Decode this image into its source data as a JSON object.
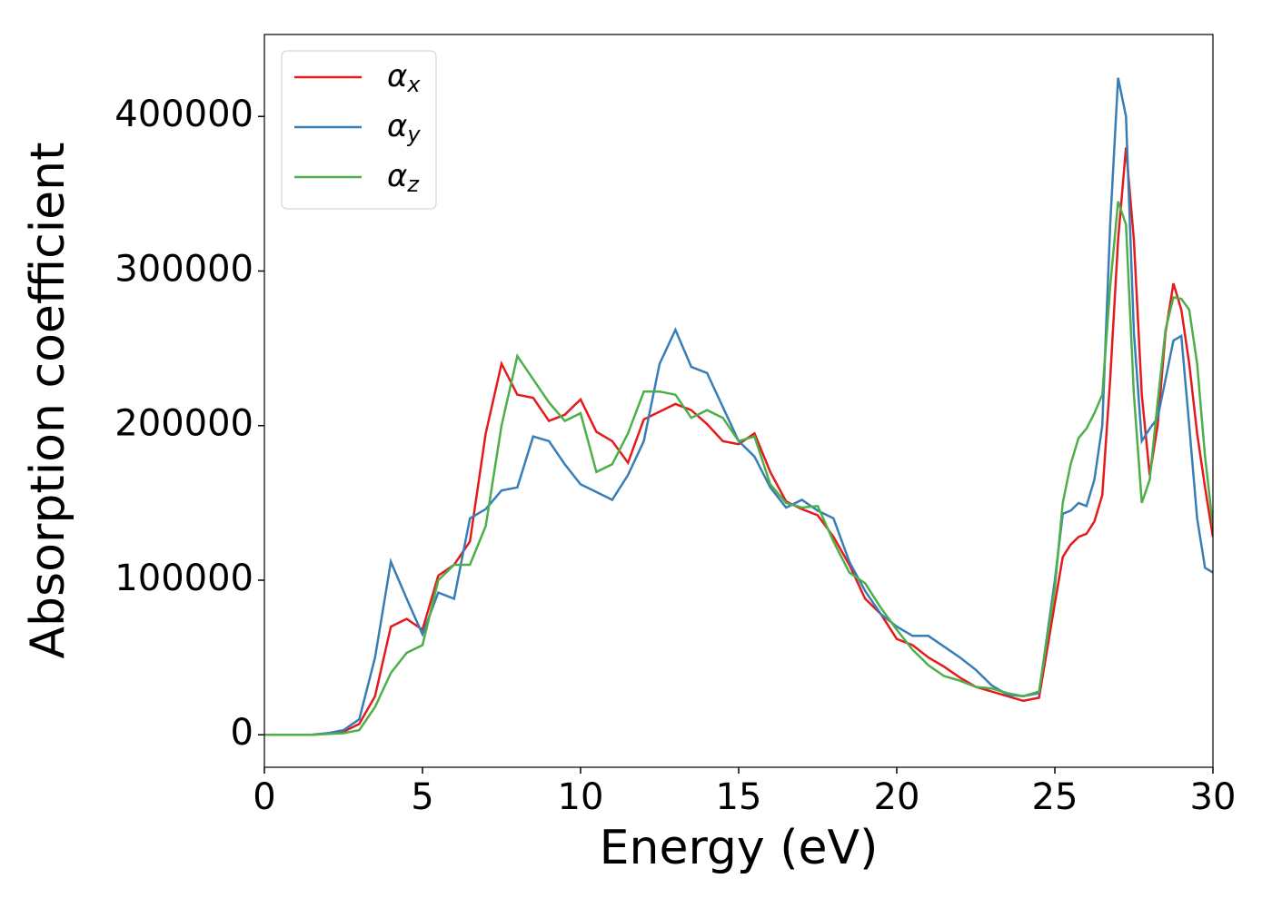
{
  "chart_data": {
    "type": "line",
    "xlabel": "Energy (eV)",
    "ylabel": "Absorption coefficient",
    "x": [
      0,
      0.5,
      1,
      1.5,
      2,
      2.5,
      3,
      3.5,
      4,
      4.5,
      5,
      5.5,
      6,
      6.5,
      7,
      7.5,
      8,
      8.5,
      9,
      9.5,
      10,
      10.5,
      11,
      11.5,
      12,
      12.5,
      13,
      13.5,
      14,
      14.5,
      15,
      15.5,
      16,
      16.5,
      17,
      17.5,
      18,
      18.5,
      19,
      19.5,
      20,
      20.5,
      21,
      21.5,
      22,
      22.5,
      23,
      23.5,
      24,
      24.5,
      25,
      25.25,
      25.5,
      25.75,
      26,
      26.25,
      26.5,
      26.75,
      27,
      27.25,
      27.5,
      27.75,
      28,
      28.25,
      28.5,
      28.75,
      29,
      29.25,
      29.5,
      29.75,
      30
    ],
    "series": [
      {
        "name": "αx",
        "color": "#e41a1c",
        "values": [
          0,
          0,
          0,
          0,
          1000,
          2000,
          7000,
          25000,
          70000,
          75000,
          68000,
          103000,
          110000,
          125000,
          195000,
          240000,
          220000,
          218000,
          203000,
          207000,
          217000,
          196000,
          190000,
          176000,
          204000,
          209000,
          214000,
          210000,
          201000,
          190000,
          188000,
          195000,
          170000,
          151000,
          146000,
          142000,
          128000,
          110000,
          88000,
          78000,
          62000,
          58000,
          50000,
          44000,
          37000,
          31000,
          28000,
          25000,
          22000,
          24000,
          85000,
          115000,
          123000,
          128000,
          130000,
          138000,
          155000,
          230000,
          320000,
          380000,
          320000,
          220000,
          168000,
          200000,
          260000,
          292000,
          275000,
          240000,
          195000,
          160000,
          128000
        ]
      },
      {
        "name": "αy",
        "color": "#377eb8",
        "values": [
          0,
          0,
          0,
          0,
          1000,
          3000,
          10000,
          50000,
          112000,
          88000,
          65000,
          92000,
          88000,
          140000,
          146000,
          158000,
          160000,
          193000,
          190000,
          175000,
          162000,
          157000,
          152000,
          168000,
          190000,
          240000,
          262000,
          238000,
          234000,
          212000,
          190000,
          180000,
          160000,
          147000,
          152000,
          145000,
          140000,
          112000,
          93000,
          78000,
          70000,
          64000,
          64000,
          57000,
          50000,
          42000,
          32000,
          26000,
          25000,
          27000,
          100000,
          143000,
          145000,
          150000,
          148000,
          165000,
          200000,
          330000,
          425000,
          400000,
          260000,
          190000,
          198000,
          205000,
          230000,
          255000,
          258000,
          200000,
          140000,
          108000,
          105000
        ]
      },
      {
        "name": "αz",
        "color": "#4daf4a",
        "values": [
          0,
          0,
          0,
          0,
          500,
          1000,
          3000,
          18000,
          40000,
          53000,
          58000,
          100000,
          110000,
          110000,
          135000,
          200000,
          245000,
          230000,
          215000,
          203000,
          208000,
          170000,
          175000,
          195000,
          222000,
          222000,
          220000,
          205000,
          210000,
          205000,
          190000,
          193000,
          162000,
          150000,
          147000,
          148000,
          125000,
          105000,
          98000,
          82000,
          68000,
          55000,
          45000,
          38000,
          35000,
          31000,
          30000,
          27000,
          25000,
          28000,
          95000,
          150000,
          175000,
          192000,
          198000,
          208000,
          220000,
          290000,
          345000,
          330000,
          220000,
          150000,
          165000,
          215000,
          262000,
          283000,
          282000,
          275000,
          240000,
          180000,
          135000
        ]
      }
    ],
    "xlim": [
      0,
      30
    ],
    "xticks": [
      0,
      5,
      10,
      15,
      20,
      25,
      30
    ],
    "ylim": [
      -21000,
      453000
    ],
    "yticks": [
      0,
      100000,
      200000,
      300000,
      400000
    ],
    "grid": false,
    "legend": "upper left"
  }
}
